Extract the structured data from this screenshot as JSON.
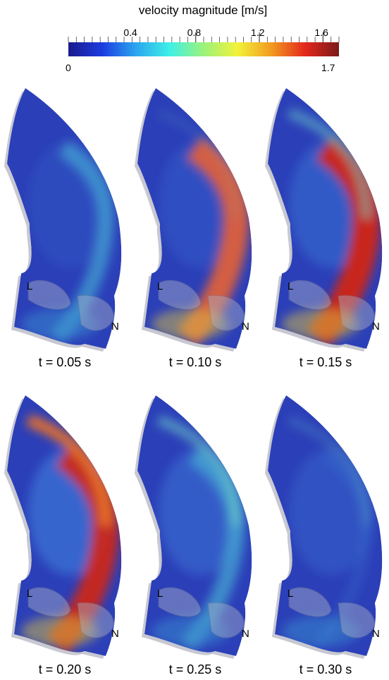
{
  "colorbar": {
    "title": "velocity magnitude [m/s]",
    "min_label": "0",
    "max_label": "1.7",
    "tick_labels": [
      "0.4",
      "0.8",
      "1.2",
      "1.6"
    ],
    "tick_values": [
      0.4,
      0.8,
      1.2,
      1.6
    ],
    "range": [
      0,
      1.7
    ],
    "colormap": [
      "#1a1a8c",
      "#1c3ce0",
      "#2aa6ee",
      "#3ff0e6",
      "#9cf27a",
      "#f2f23a",
      "#f29a20",
      "#e3281c",
      "#7a1a1a"
    ]
  },
  "valve_labels": {
    "left": "L",
    "right": "N"
  },
  "panels": [
    {
      "id": "p1",
      "caption": "t = 0.05 s",
      "jet": 0.45,
      "tail": 0.0
    },
    {
      "id": "p2",
      "caption": "t = 0.10 s",
      "jet": 0.9,
      "tail": 0.15
    },
    {
      "id": "p3",
      "caption": "t = 0.15 s",
      "jet": 1.0,
      "tail": 0.55
    },
    {
      "id": "p4",
      "caption": "t = 0.20 s",
      "jet": 0.95,
      "tail": 0.95
    },
    {
      "id": "p5",
      "caption": "t = 0.25 s",
      "jet": 0.5,
      "tail": 0.6
    },
    {
      "id": "p6",
      "caption": "t = 0.30 s",
      "jet": 0.15,
      "tail": 0.25
    }
  ]
}
